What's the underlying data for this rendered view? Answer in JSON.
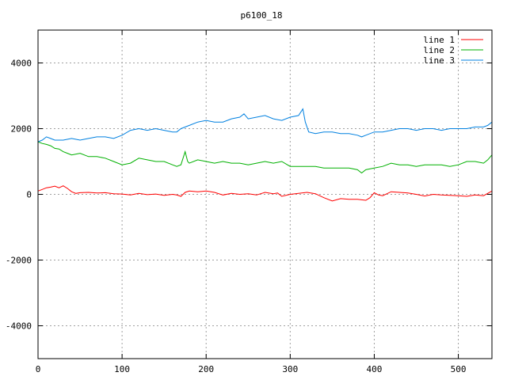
{
  "chart_data": {
    "type": "line",
    "title": "p6100_18",
    "xlabel": "",
    "ylabel": "",
    "xlim": [
      0,
      540
    ],
    "ylim": [
      -5000,
      5000
    ],
    "x_ticks": [
      0,
      100,
      200,
      300,
      400,
      500
    ],
    "y_ticks": [
      -4000,
      -2000,
      0,
      2000,
      4000
    ],
    "grid": true,
    "legend_position": "top-right",
    "series": [
      {
        "name": "line 1",
        "color": "#ff0000",
        "points": [
          [
            0,
            100
          ],
          [
            5,
            150
          ],
          [
            10,
            200
          ],
          [
            15,
            220
          ],
          [
            20,
            250
          ],
          [
            25,
            200
          ],
          [
            30,
            260
          ],
          [
            35,
            180
          ],
          [
            40,
            80
          ],
          [
            45,
            30
          ],
          [
            50,
            50
          ],
          [
            60,
            60
          ],
          [
            70,
            40
          ],
          [
            80,
            50
          ],
          [
            90,
            20
          ],
          [
            100,
            10
          ],
          [
            110,
            -20
          ],
          [
            120,
            30
          ],
          [
            130,
            -10
          ],
          [
            140,
            10
          ],
          [
            150,
            -30
          ],
          [
            160,
            0
          ],
          [
            165,
            -20
          ],
          [
            170,
            -60
          ],
          [
            175,
            60
          ],
          [
            180,
            100
          ],
          [
            190,
            80
          ],
          [
            200,
            100
          ],
          [
            210,
            60
          ],
          [
            220,
            -20
          ],
          [
            230,
            30
          ],
          [
            240,
            0
          ],
          [
            250,
            20
          ],
          [
            260,
            -20
          ],
          [
            270,
            60
          ],
          [
            280,
            20
          ],
          [
            285,
            40
          ],
          [
            290,
            -60
          ],
          [
            300,
            0
          ],
          [
            310,
            30
          ],
          [
            320,
            60
          ],
          [
            330,
            20
          ],
          [
            340,
            -100
          ],
          [
            350,
            -200
          ],
          [
            360,
            -130
          ],
          [
            370,
            -150
          ],
          [
            380,
            -150
          ],
          [
            390,
            -180
          ],
          [
            395,
            -100
          ],
          [
            400,
            50
          ],
          [
            405,
            -20
          ],
          [
            410,
            -40
          ],
          [
            420,
            80
          ],
          [
            430,
            60
          ],
          [
            440,
            40
          ],
          [
            450,
            0
          ],
          [
            460,
            -50
          ],
          [
            470,
            0
          ],
          [
            480,
            -20
          ],
          [
            490,
            -30
          ],
          [
            500,
            -40
          ],
          [
            510,
            -60
          ],
          [
            520,
            -20
          ],
          [
            530,
            -40
          ],
          [
            540,
            100
          ]
        ]
      },
      {
        "name": "line 2",
        "color": "#00b000",
        "points": [
          [
            0,
            1600
          ],
          [
            5,
            1550
          ],
          [
            10,
            1520
          ],
          [
            15,
            1480
          ],
          [
            20,
            1400
          ],
          [
            25,
            1380
          ],
          [
            30,
            1300
          ],
          [
            35,
            1250
          ],
          [
            40,
            1200
          ],
          [
            50,
            1250
          ],
          [
            60,
            1150
          ],
          [
            70,
            1150
          ],
          [
            80,
            1100
          ],
          [
            90,
            1000
          ],
          [
            100,
            900
          ],
          [
            110,
            950
          ],
          [
            120,
            1100
          ],
          [
            130,
            1050
          ],
          [
            140,
            1000
          ],
          [
            150,
            1000
          ],
          [
            160,
            900
          ],
          [
            165,
            850
          ],
          [
            170,
            900
          ],
          [
            175,
            1300
          ],
          [
            178,
            1000
          ],
          [
            180,
            950
          ],
          [
            190,
            1050
          ],
          [
            200,
            1000
          ],
          [
            210,
            950
          ],
          [
            220,
            1000
          ],
          [
            230,
            950
          ],
          [
            240,
            950
          ],
          [
            250,
            900
          ],
          [
            260,
            950
          ],
          [
            270,
            1000
          ],
          [
            280,
            950
          ],
          [
            290,
            1000
          ],
          [
            300,
            850
          ],
          [
            310,
            850
          ],
          [
            320,
            850
          ],
          [
            330,
            850
          ],
          [
            340,
            800
          ],
          [
            350,
            800
          ],
          [
            360,
            800
          ],
          [
            370,
            800
          ],
          [
            380,
            750
          ],
          [
            385,
            650
          ],
          [
            390,
            750
          ],
          [
            400,
            800
          ],
          [
            410,
            850
          ],
          [
            420,
            950
          ],
          [
            430,
            900
          ],
          [
            440,
            900
          ],
          [
            450,
            850
          ],
          [
            460,
            900
          ],
          [
            470,
            900
          ],
          [
            480,
            900
          ],
          [
            490,
            850
          ],
          [
            500,
            900
          ],
          [
            510,
            1000
          ],
          [
            520,
            1000
          ],
          [
            530,
            950
          ],
          [
            535,
            1050
          ],
          [
            540,
            1200
          ]
        ]
      },
      {
        "name": "line 3",
        "color": "#0080e0",
        "points": [
          [
            0,
            1600
          ],
          [
            5,
            1650
          ],
          [
            10,
            1750
          ],
          [
            15,
            1700
          ],
          [
            20,
            1650
          ],
          [
            30,
            1650
          ],
          [
            40,
            1700
          ],
          [
            50,
            1650
          ],
          [
            60,
            1700
          ],
          [
            70,
            1750
          ],
          [
            80,
            1750
          ],
          [
            90,
            1700
          ],
          [
            100,
            1800
          ],
          [
            110,
            1950
          ],
          [
            120,
            2000
          ],
          [
            130,
            1950
          ],
          [
            140,
            2000
          ],
          [
            150,
            1950
          ],
          [
            160,
            1900
          ],
          [
            165,
            1900
          ],
          [
            170,
            2000
          ],
          [
            180,
            2100
          ],
          [
            190,
            2200
          ],
          [
            200,
            2250
          ],
          [
            210,
            2200
          ],
          [
            220,
            2200
          ],
          [
            230,
            2300
          ],
          [
            240,
            2350
          ],
          [
            245,
            2450
          ],
          [
            250,
            2300
          ],
          [
            260,
            2350
          ],
          [
            270,
            2400
          ],
          [
            280,
            2300
          ],
          [
            290,
            2250
          ],
          [
            300,
            2350
          ],
          [
            310,
            2400
          ],
          [
            315,
            2600
          ],
          [
            318,
            2200
          ],
          [
            322,
            1900
          ],
          [
            330,
            1850
          ],
          [
            340,
            1900
          ],
          [
            350,
            1900
          ],
          [
            360,
            1850
          ],
          [
            370,
            1850
          ],
          [
            380,
            1800
          ],
          [
            385,
            1750
          ],
          [
            390,
            1800
          ],
          [
            400,
            1900
          ],
          [
            410,
            1900
          ],
          [
            420,
            1950
          ],
          [
            430,
            2000
          ],
          [
            440,
            2000
          ],
          [
            450,
            1950
          ],
          [
            460,
            2000
          ],
          [
            470,
            2000
          ],
          [
            480,
            1950
          ],
          [
            490,
            2000
          ],
          [
            500,
            2000
          ],
          [
            510,
            2000
          ],
          [
            520,
            2050
          ],
          [
            530,
            2050
          ],
          [
            535,
            2100
          ],
          [
            540,
            2200
          ]
        ]
      }
    ]
  }
}
